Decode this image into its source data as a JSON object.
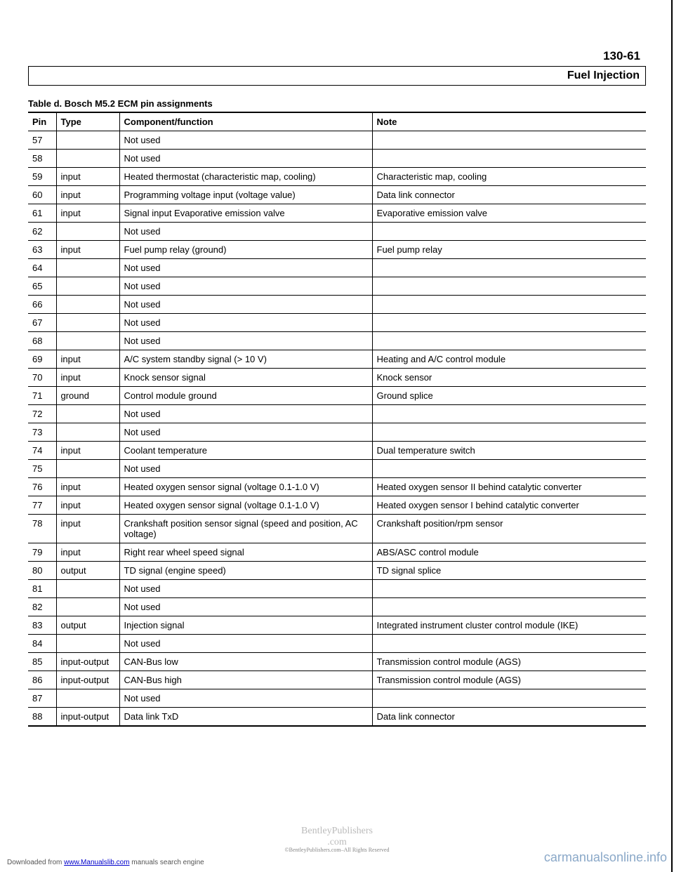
{
  "page_number": "130-61",
  "section_title": "Fuel Injection",
  "table_caption": "Table d. Bosch M5.2 ECM pin assignments",
  "table": {
    "columns": [
      "Pin",
      "Type",
      "Component/function",
      "Note"
    ],
    "rows": [
      [
        "57",
        "",
        "Not used",
        ""
      ],
      [
        "58",
        "",
        "Not used",
        ""
      ],
      [
        "59",
        "input",
        "Heated thermostat (characteristic map, cooling)",
        "Characteristic map, cooling"
      ],
      [
        "60",
        "input",
        "Programming voltage input (voltage value)",
        "Data link connector"
      ],
      [
        "61",
        "input",
        "Signal input Evaporative emission valve",
        "Evaporative emission valve"
      ],
      [
        "62",
        "",
        "Not used",
        ""
      ],
      [
        "63",
        "input",
        "Fuel pump relay (ground)",
        "Fuel pump relay"
      ],
      [
        "64",
        "",
        "Not used",
        ""
      ],
      [
        "65",
        "",
        "Not used",
        ""
      ],
      [
        "66",
        "",
        "Not used",
        ""
      ],
      [
        "67",
        "",
        "Not used",
        ""
      ],
      [
        "68",
        "",
        "Not used",
        ""
      ],
      [
        "69",
        "input",
        "A/C system standby signal (> 10 V)",
        "Heating and A/C control module"
      ],
      [
        "70",
        "input",
        "Knock sensor signal",
        "Knock sensor"
      ],
      [
        "71",
        "ground",
        "Control module ground",
        "Ground splice"
      ],
      [
        "72",
        "",
        "Not used",
        ""
      ],
      [
        "73",
        "",
        "Not used",
        ""
      ],
      [
        "74",
        "input",
        "Coolant temperature",
        "Dual temperature switch"
      ],
      [
        "75",
        "",
        "Not used",
        ""
      ],
      [
        "76",
        "input",
        "Heated oxygen sensor signal (voltage 0.1-1.0 V)",
        "Heated oxygen sensor II behind catalytic converter"
      ],
      [
        "77",
        "input",
        "Heated oxygen sensor signal (voltage 0.1-1.0 V)",
        "Heated oxygen sensor I behind catalytic converter"
      ],
      [
        "78",
        "input",
        "Crankshaft position sensor signal (speed and position, AC voltage)",
        "Crankshaft position/rpm sensor"
      ],
      [
        "79",
        "input",
        "Right rear wheel speed signal",
        "ABS/ASC control module"
      ],
      [
        "80",
        "output",
        "TD signal (engine speed)",
        "TD signal splice"
      ],
      [
        "81",
        "",
        "Not used",
        ""
      ],
      [
        "82",
        "",
        "Not used",
        ""
      ],
      [
        "83",
        "output",
        "Injection signal",
        "Integrated instrument cluster control module (IKE)"
      ],
      [
        "84",
        "",
        "Not used",
        ""
      ],
      [
        "85",
        "input-output",
        "CAN-Bus low",
        "Transmission control module (AGS)"
      ],
      [
        "86",
        "input-output",
        "CAN-Bus high",
        "Transmission control module (AGS)"
      ],
      [
        "87",
        "",
        "Not used",
        ""
      ],
      [
        "88",
        "input-output",
        "Data link TxD",
        "Data link connector"
      ]
    ]
  },
  "footer": {
    "left_prefix": "Downloaded from ",
    "left_link": "www.Manualslib.com",
    "left_suffix": " manuals search engine",
    "center_main": "BentleyPublishers",
    "center_sub": ".com",
    "center_rights": "©BentleyPublishers.com–All Rights Reserved",
    "right": "carmanualsonline.info"
  }
}
